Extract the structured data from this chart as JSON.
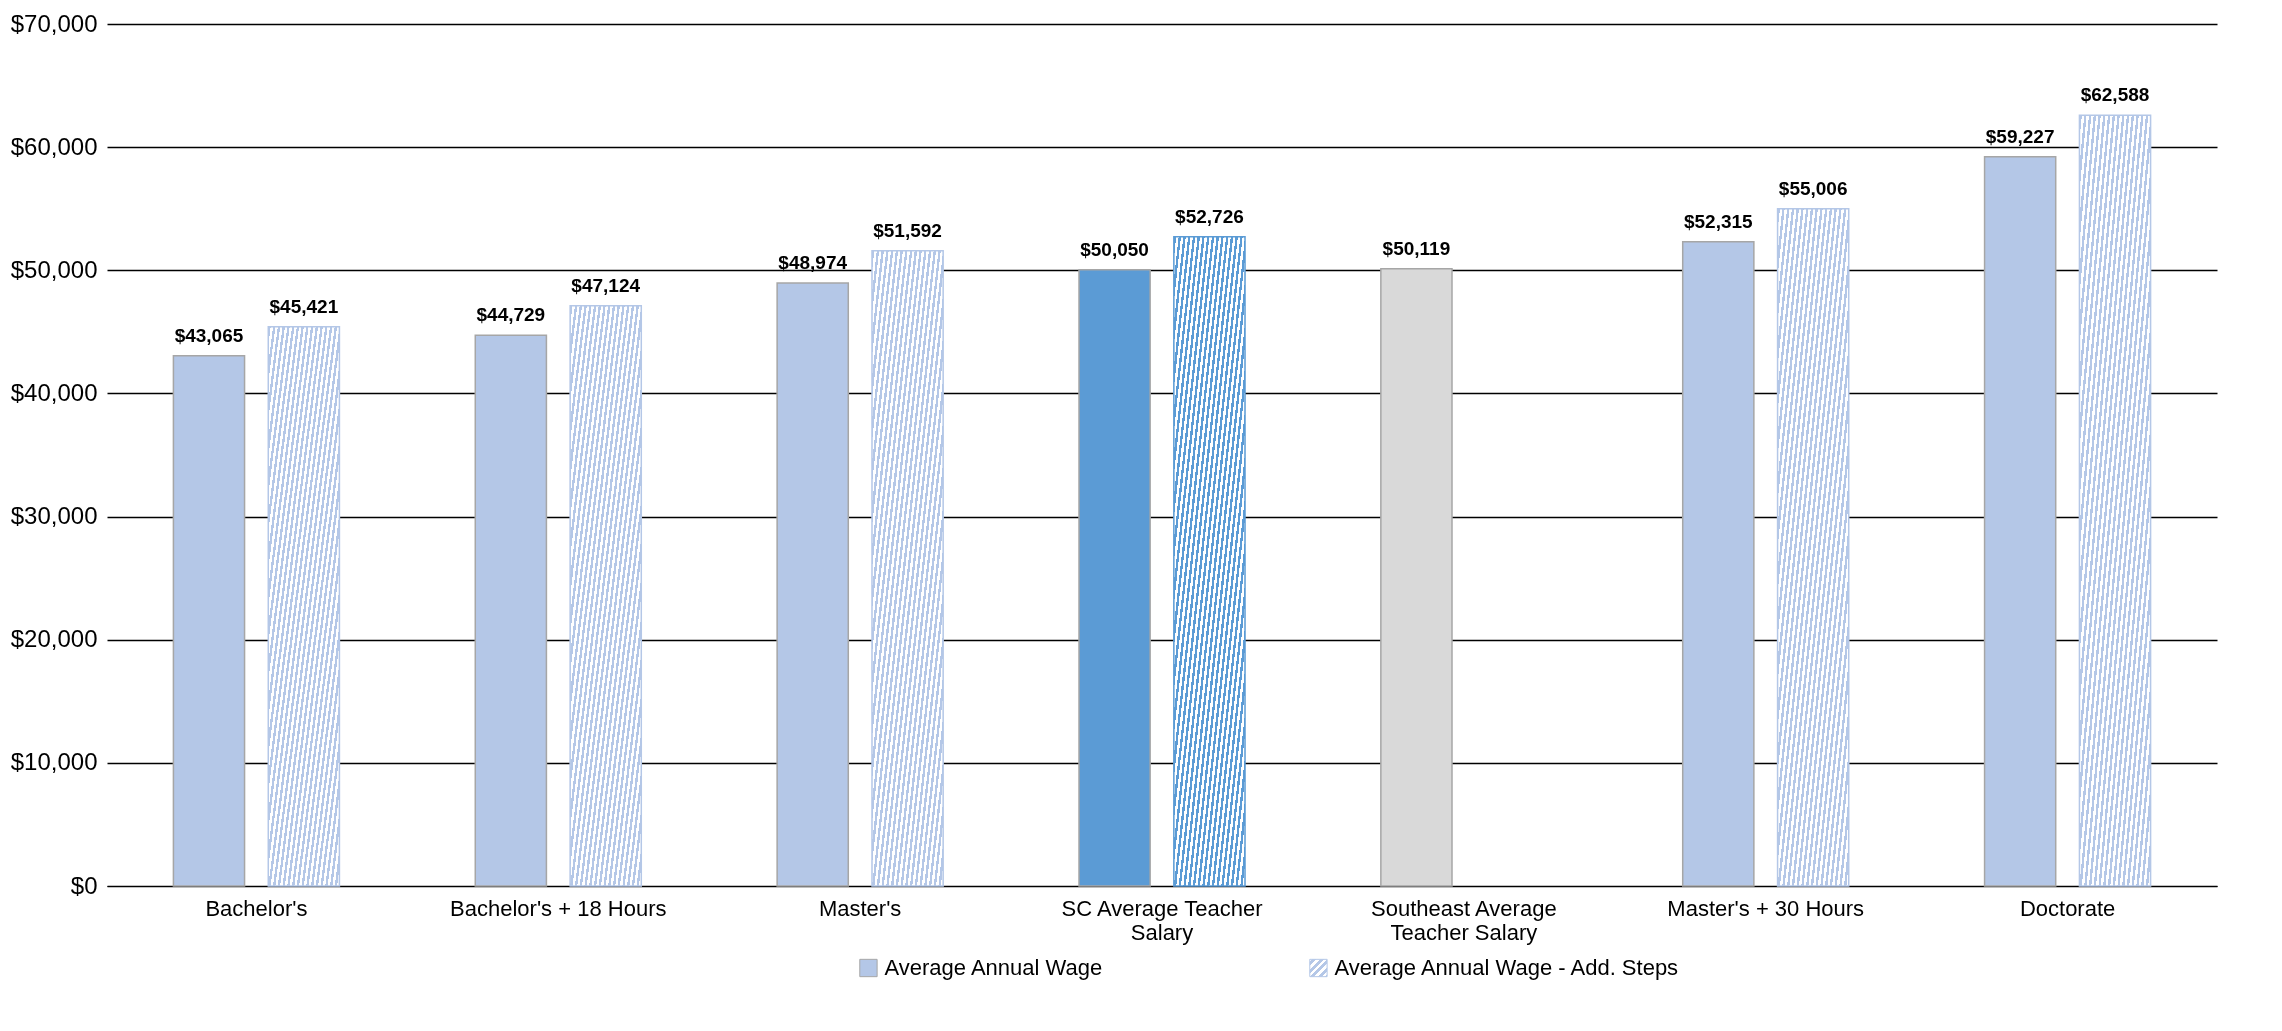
{
  "chart_data": {
    "type": "bar",
    "categories": [
      "Bachelor's",
      "Bachelor's + 18 Hours",
      "Master's",
      "SC Average Teacher Salary",
      "Southeast Average Teacher Salary",
      "Master's + 30 Hours",
      "Doctorate"
    ],
    "series": [
      {
        "name": "Average Annual Wage",
        "color": "#b4c7e7",
        "colors": [
          "#b4c7e7",
          "#b4c7e7",
          "#b4c7e7",
          "#5b9bd5",
          "#d9d9d9",
          "#b4c7e7",
          "#b4c7e7"
        ],
        "values": [
          43065,
          44729,
          48974,
          50050,
          50119,
          52315,
          59227
        ],
        "value_labels": [
          "$43,065",
          "$44,729",
          "$48,974",
          "$50,050",
          "$50,119",
          "$52,315",
          "$59,227"
        ]
      },
      {
        "name": "Average Annual Wage - Add. Steps",
        "color": "#b4c7e7",
        "colors": [
          "#b4c7e7",
          "#b4c7e7",
          "#b4c7e7",
          "#5b9bd5",
          null,
          "#b4c7e7",
          "#b4c7e7"
        ],
        "values": [
          45421,
          47124,
          51592,
          52726,
          null,
          55006,
          62588
        ],
        "value_labels": [
          "$45,421",
          "$47,124",
          "$51,592",
          "$52,726",
          null,
          "$55,006",
          "$62,588"
        ]
      }
    ],
    "ylim": [
      0,
      70000
    ],
    "yticks": [
      {
        "value": 0,
        "label": "$0"
      },
      {
        "value": 10000,
        "label": "$10,000"
      },
      {
        "value": 20000,
        "label": "$20,000"
      },
      {
        "value": 30000,
        "label": "$30,000"
      },
      {
        "value": 40000,
        "label": "$40,000"
      },
      {
        "value": 50000,
        "label": "$50,000"
      },
      {
        "value": 60000,
        "label": "$60,000"
      },
      {
        "value": 70000,
        "label": "$70,000"
      }
    ],
    "grid": "y",
    "legend": "bottom"
  }
}
